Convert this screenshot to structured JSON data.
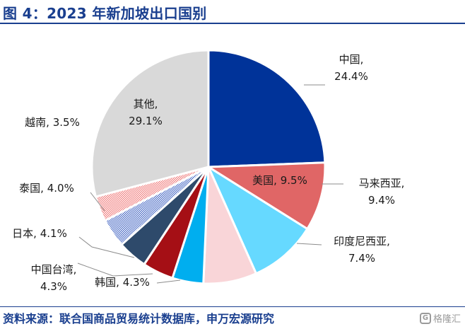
{
  "title": "图 4：2023 年新加坡出口国别",
  "source": "资料来源：联合国商品贸易统计数据库，申万宏源研究",
  "watermark": {
    "icon": "gelonghui-logo-icon",
    "text": "格隆汇"
  },
  "chart_data": {
    "type": "pie",
    "start_angle_deg": 0,
    "direction": "clockwise",
    "slices": [
      {
        "label": "中国,",
        "value_label": "24.4%",
        "value": 24.4,
        "color": "#003399"
      },
      {
        "label": "美国,",
        "value_label": "9.5%",
        "value": 9.5,
        "color": "#E06666"
      },
      {
        "label": "马来西亚,",
        "value_label": "9.4%",
        "value": 9.4,
        "color": "#66D9FF"
      },
      {
        "label": "印度尼西亚,",
        "value_label": "7.4%",
        "value": 7.4,
        "color": "#F9D5D8"
      },
      {
        "label": "韩国,",
        "value_label": "4.3%",
        "value": 4.3,
        "color": "#00AEEF"
      },
      {
        "label": "中国台湾,",
        "value_label": "4.3%",
        "value": 4.3,
        "color": "#A50F15"
      },
      {
        "label": "日本,",
        "value_label": "4.1%",
        "value": 4.1,
        "color": "#2E4A6B"
      },
      {
        "label": "泰国,",
        "value_label": "4.0%",
        "value": 4.0,
        "color": "#4F6FC7",
        "pattern": "checker"
      },
      {
        "label": "越南,",
        "value_label": "3.5%",
        "value": 3.5,
        "color": "#F2A5A5",
        "pattern": "checker"
      },
      {
        "label": "其他,",
        "value_label": "29.1%",
        "value": 29.1,
        "color": "#D9D9D9"
      }
    ]
  }
}
